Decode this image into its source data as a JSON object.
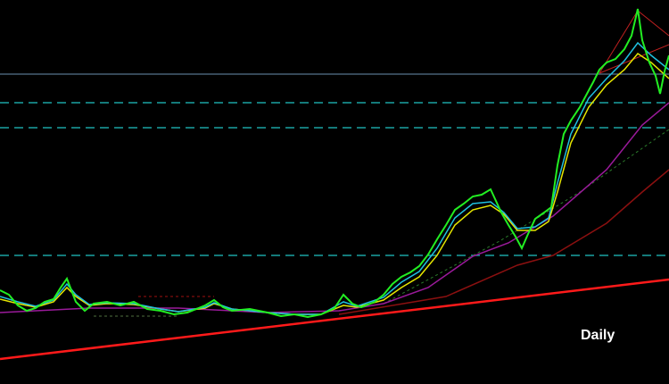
{
  "timeframe_label": "Daily"
}
